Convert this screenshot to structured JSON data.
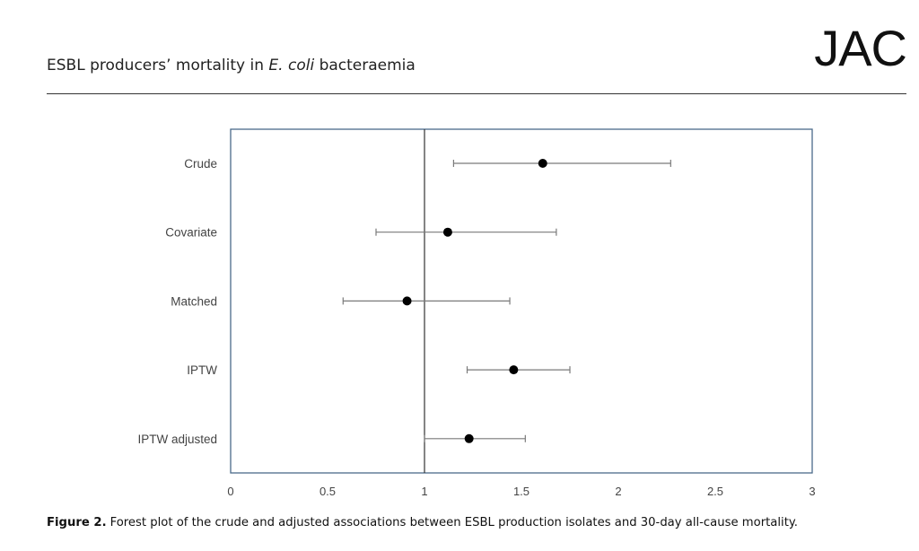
{
  "header": {
    "running_title_pre": "ESBL producers’ mortality in ",
    "running_title_italic": "E. coli",
    "running_title_post": " bacteraemia",
    "journal": "JAC"
  },
  "caption": {
    "label": "Figure 2.",
    "text": "Forest plot of the crude and adjusted associations between ESBL production isolates and 30-day all-cause mortality."
  },
  "chart_data": {
    "type": "scatter",
    "subtype": "forest-plot",
    "categories": [
      "Crude",
      "Covariate",
      "Matched",
      "IPTW",
      "IPTW adjusted"
    ],
    "estimates": [
      1.61,
      1.12,
      0.91,
      1.46,
      1.23
    ],
    "ci_lower": [
      1.15,
      0.75,
      0.58,
      1.22,
      1.0
    ],
    "ci_upper": [
      2.27,
      1.68,
      1.44,
      1.75,
      1.52
    ],
    "reference_line": 1,
    "xlim": [
      0,
      3
    ],
    "xticks": [
      0,
      0.5,
      1,
      1.5,
      2,
      2.5,
      3
    ],
    "xtick_labels": [
      "0",
      "0.5",
      "1",
      "1.5",
      "2",
      "2.5",
      "3"
    ],
    "grid": false,
    "colors": {
      "frame": "#4a6a8a",
      "marker": "#000000",
      "whisker": "#7a7a7a",
      "reference": "#333333"
    }
  }
}
